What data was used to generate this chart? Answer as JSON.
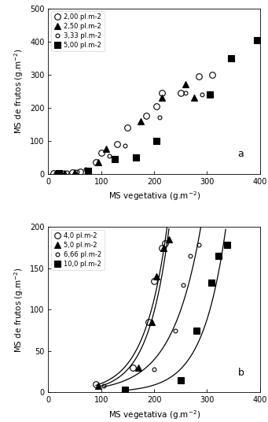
{
  "panel_a": {
    "title_label": "a",
    "series": [
      {
        "label": "2,00 pl.m-2",
        "marker": "o",
        "fillstyle": "none",
        "markersize": 5.5,
        "x": [
          10,
          25,
          45,
          60,
          90,
          100,
          130,
          150,
          185,
          205,
          215,
          250,
          285,
          310
        ],
        "y": [
          2,
          3,
          5,
          8,
          35,
          65,
          90,
          140,
          175,
          205,
          245,
          245,
          295,
          300
        ]
      },
      {
        "label": "2,50 pl.m-2",
        "marker": "^",
        "fillstyle": "full",
        "markersize": 5.5,
        "x": [
          15,
          30,
          50,
          95,
          110,
          175,
          215,
          260,
          275
        ],
        "y": [
          2,
          3,
          5,
          35,
          75,
          160,
          230,
          270,
          230
        ]
      },
      {
        "label": "3,33 pl.m-2",
        "marker": "o",
        "fillstyle": "none",
        "markersize": 3.5,
        "x": [
          15,
          35,
          55,
          70,
          115,
          145,
          210,
          260,
          290
        ],
        "y": [
          2,
          5,
          8,
          15,
          55,
          85,
          170,
          245,
          240
        ]
      },
      {
        "label": "5,00 pl.m-2",
        "marker": "s",
        "fillstyle": "full",
        "markersize": 5.5,
        "x": [
          20,
          75,
          125,
          165,
          205,
          305,
          345,
          395
        ],
        "y": [
          2,
          10,
          45,
          50,
          100,
          240,
          350,
          405
        ]
      }
    ],
    "xlabel": "MS vegetativa (g.m$^{-2}$)",
    "ylabel": "MS de frutos (g.m$^{-2}$)",
    "xlim": [
      0,
      400
    ],
    "ylim": [
      0,
      500
    ],
    "xticks": [
      0,
      100,
      200,
      300,
      400
    ],
    "yticks": [
      0,
      100,
      200,
      300,
      400,
      500
    ]
  },
  "panel_b": {
    "title_label": "b",
    "series": [
      {
        "label": "4,0 pl.m-2",
        "marker": "o",
        "fillstyle": "none",
        "markersize": 5.5,
        "x": [
          90,
          160,
          190,
          200,
          215,
          220
        ],
        "y": [
          10,
          30,
          85,
          135,
          175,
          180
        ]
      },
      {
        "label": "5,0 pl.m-2",
        "marker": "^",
        "fillstyle": "full",
        "markersize": 5.5,
        "x": [
          95,
          170,
          195,
          205,
          218,
          228
        ],
        "y": [
          8,
          30,
          85,
          140,
          175,
          185
        ]
      },
      {
        "label": "6,66 pl.m-2",
        "marker": "o",
        "fillstyle": "none",
        "markersize": 3.5,
        "x": [
          105,
          200,
          240,
          255,
          268,
          285
        ],
        "y": [
          8,
          28,
          75,
          130,
          165,
          178
        ]
      },
      {
        "label": "10,0 pl.m-2",
        "marker": "s",
        "fillstyle": "full",
        "markersize": 5.5,
        "x": [
          145,
          250,
          280,
          308,
          322,
          338
        ],
        "y": [
          3,
          15,
          75,
          133,
          165,
          178
        ]
      }
    ],
    "xlabel": "MS vegetativa (g.m$^{-2}$)",
    "ylabel": "MS de frutos (g.m$^{-2}$)",
    "xlim": [
      0,
      400
    ],
    "ylim": [
      0,
      200
    ],
    "xticks": [
      0,
      100,
      200,
      300,
      400
    ],
    "yticks": [
      0,
      50,
      100,
      150,
      200
    ]
  }
}
